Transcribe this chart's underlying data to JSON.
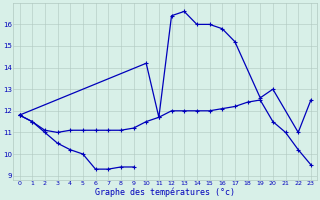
{
  "title": "Graphe des températures (°c)",
  "hours": [
    0,
    1,
    2,
    3,
    4,
    5,
    6,
    7,
    8,
    9,
    10,
    11,
    12,
    13,
    14,
    15,
    16,
    17,
    18,
    19,
    20,
    21,
    22,
    23
  ],
  "line_bot_x": [
    0,
    1,
    2,
    3,
    4,
    5,
    6,
    7,
    8,
    9
  ],
  "line_bot_y": [
    11.8,
    11.5,
    11.0,
    10.5,
    10.2,
    10.0,
    9.3,
    9.3,
    9.4,
    9.4
  ],
  "line_mid_x": [
    0,
    1,
    2,
    3,
    4,
    5,
    6,
    7,
    8,
    9,
    10,
    11,
    12,
    13,
    14,
    15,
    16,
    17,
    18,
    19,
    20,
    21,
    22,
    23
  ],
  "line_mid_y": [
    11.8,
    11.5,
    11.1,
    11.0,
    11.1,
    11.1,
    11.1,
    11.1,
    11.1,
    11.2,
    11.5,
    11.7,
    12.0,
    12.0,
    12.0,
    12.0,
    12.1,
    12.2,
    12.4,
    12.5,
    11.5,
    11.0,
    10.2,
    9.5
  ],
  "line_top_x": [
    0,
    10,
    11,
    12,
    13,
    14,
    15,
    16,
    17,
    19,
    20,
    22,
    23
  ],
  "line_top_y": [
    11.8,
    14.2,
    11.7,
    16.4,
    16.6,
    16.0,
    16.0,
    15.8,
    15.2,
    12.6,
    13.0,
    11.0,
    12.5
  ],
  "ylim": [
    8.8,
    17.0
  ],
  "yticks": [
    9,
    10,
    11,
    12,
    13,
    14,
    15,
    16
  ],
  "xlim": [
    -0.5,
    23.5
  ],
  "line_color": "#0000bb",
  "bg_color": "#d8f0e8",
  "grid_color": "#b0c8c0",
  "title_fontsize": 6.0,
  "tick_fontsize": 4.5,
  "linewidth": 0.9,
  "markersize": 3.0
}
